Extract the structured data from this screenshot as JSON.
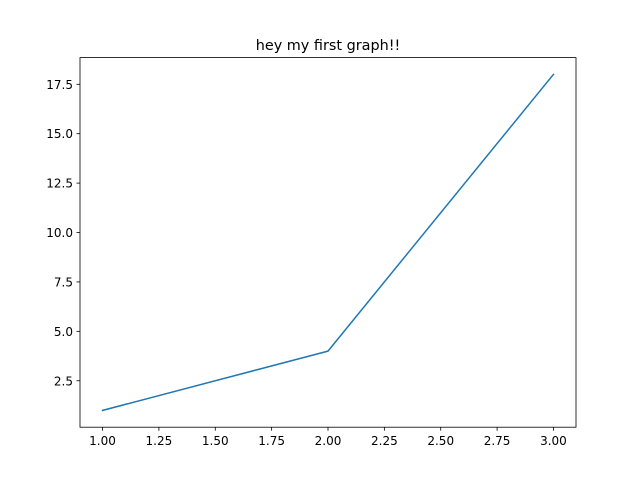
{
  "chart_data": {
    "type": "line",
    "title": "hey my first graph!!",
    "xlabel": "",
    "ylabel": "",
    "x": [
      1,
      2,
      3
    ],
    "series": [
      {
        "values": [
          1,
          4,
          18
        ],
        "color": "#1f77b4"
      }
    ],
    "xlim": [
      0.9,
      3.1
    ],
    "ylim": [
      0.15,
      18.85
    ],
    "xticks": [
      1.0,
      1.25,
      1.5,
      1.75,
      2.0,
      2.25,
      2.5,
      2.75,
      3.0
    ],
    "xtick_labels": [
      "1.00",
      "1.25",
      "1.50",
      "1.75",
      "2.00",
      "2.25",
      "2.50",
      "2.75",
      "3.00"
    ],
    "yticks": [
      2.5,
      5.0,
      7.5,
      10.0,
      12.5,
      15.0,
      17.5
    ],
    "ytick_labels": [
      "2.5",
      "5.0",
      "7.5",
      "10.0",
      "12.5",
      "15.0",
      "17.5"
    ],
    "grid": false,
    "legend": false
  }
}
